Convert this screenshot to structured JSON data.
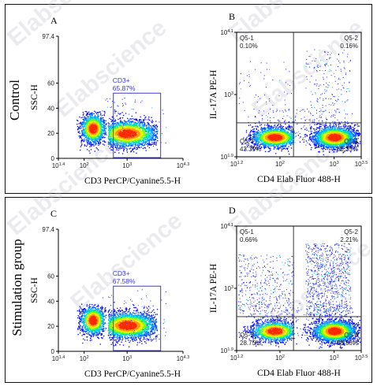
{
  "rows": [
    {
      "title": "Control"
    },
    {
      "title": "Stimulation group"
    }
  ],
  "watermark": "Elabscience",
  "chart_data": [
    {
      "type": "scatter",
      "panel_letter": "A",
      "xlabel": "CD3 PerCP/Cyanine5.5-H",
      "ylabel": "SSC-H",
      "x_scale": "log",
      "xlim": [
        10.0,
        42.7
      ],
      "x_ticks": [
        "10^1.4",
        "10^2",
        "10^3",
        "10^4.3"
      ],
      "ylim": [
        0,
        97.4
      ],
      "y_ticks": [
        "0",
        "20",
        "40",
        "60",
        "97.4"
      ],
      "gate": {
        "name": "CD3+",
        "value": "65.87%",
        "x_range": [
          500,
          4800
        ],
        "y_range": [
          0,
          52
        ]
      },
      "clusters": [
        {
          "x_center": 210,
          "y_center": 22,
          "n": 1600
        },
        {
          "x_center": 1150,
          "y_center": 20,
          "n": 2800
        }
      ]
    },
    {
      "type": "scatter",
      "panel_letter": "B",
      "xlabel": "CD4 Elab Fluor 488-H",
      "ylabel": "IL-17A PE-H",
      "x_scale": "log",
      "y_scale": "log",
      "x_ticks": [
        "10^1.2",
        "10^2",
        "10^3",
        "10^3.5"
      ],
      "y_ticks": [
        "10^1.9",
        "10^3",
        "10^4.1"
      ],
      "quadrants": [
        {
          "name": "Q5-1",
          "value": "0.10%"
        },
        {
          "name": "Q5-2",
          "value": "0.16%"
        },
        {
          "name": "Q5-3",
          "value": "43.39%"
        },
        {
          "name": "Q5-4",
          "value": "56.35%"
        }
      ]
    },
    {
      "type": "scatter",
      "panel_letter": "C",
      "xlabel": "CD3 PerCP/Cyanine5.5-H",
      "ylabel": "SSC-H",
      "x_scale": "log",
      "x_ticks": [
        "10^1.4",
        "10^2",
        "10^3",
        "10^4.3"
      ],
      "ylim": [
        0,
        97.4
      ],
      "y_ticks": [
        "0",
        "20",
        "40",
        "60",
        "97.4"
      ],
      "gate": {
        "name": "CD3+",
        "value": "67.58%"
      }
    },
    {
      "type": "scatter",
      "panel_letter": "D",
      "xlabel": "CD4 Elab Fluor 488-H",
      "ylabel": "IL-17A PE-H",
      "x_scale": "log",
      "y_scale": "log",
      "x_ticks": [
        "10^1.2",
        "10^2",
        "10^3",
        "10^3.5"
      ],
      "y_ticks": [
        "10^1.9",
        "10^3",
        "10^4.1"
      ],
      "quadrants": [
        {
          "name": "Q5-1",
          "value": "0.66%"
        },
        {
          "name": "Q5-2",
          "value": "2.21%"
        },
        {
          "name": "Q5-3",
          "value": "28.75%"
        },
        {
          "name": "Q5-4",
          "value": "68.38%"
        }
      ]
    }
  ]
}
